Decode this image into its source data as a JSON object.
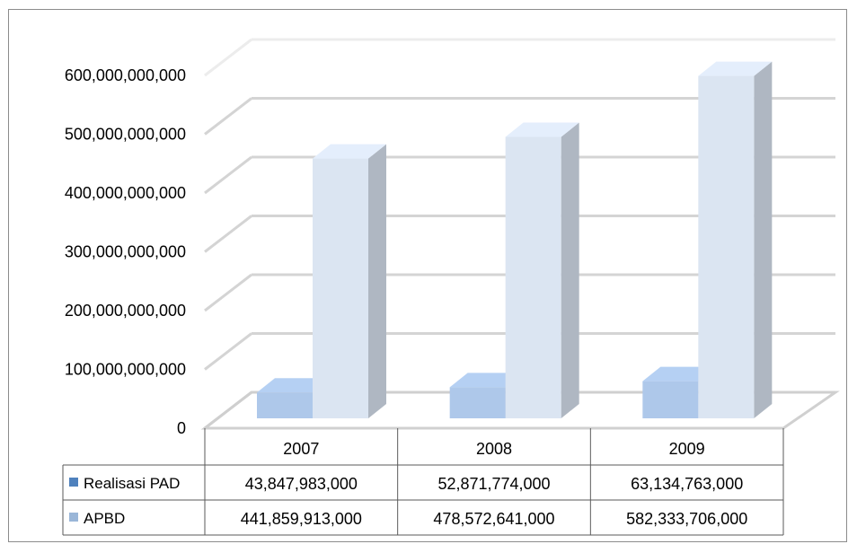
{
  "chart_data": {
    "type": "bar",
    "three_d": true,
    "categories": [
      "2007",
      "2008",
      "2009"
    ],
    "series": [
      {
        "name": "Realisasi PAD",
        "values": [
          43847983000,
          52871774000,
          63134763000
        ],
        "labels": [
          "43,847,983,000",
          "52,871,774,000",
          "63,134,763,000"
        ],
        "color": "#aec8ea"
      },
      {
        "name": "APBD",
        "values": [
          441859913000,
          478572641000,
          582333706000
        ],
        "labels": [
          "441,859,913,000",
          "478,572,641,000",
          "582,333,706,000"
        ],
        "color": "#dbe5f2"
      }
    ],
    "legend_colors": [
      "#4f81bd",
      "#9ab6d8"
    ],
    "ylim": [
      0,
      600000000000
    ],
    "yticks": [
      {
        "value": 0,
        "label": "0"
      },
      {
        "value": 100000000000,
        "label": "100,000,000,000"
      },
      {
        "value": 200000000000,
        "label": "200,000,000,000"
      },
      {
        "value": 300000000000,
        "label": "300,000,000,000"
      },
      {
        "value": 400000000000,
        "label": "400,000,000,000"
      },
      {
        "value": 500000000000,
        "label": "500,000,000,000"
      },
      {
        "value": 600000000000,
        "label": "600,000,000,000"
      }
    ],
    "grid": true,
    "legend": "data-table",
    "data_table": true
  }
}
